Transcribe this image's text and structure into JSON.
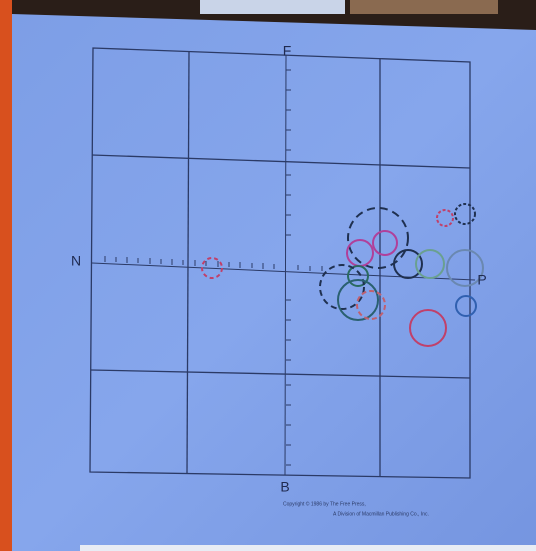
{
  "diagram": {
    "labels": {
      "top": "F",
      "bottom": "B",
      "left": "N",
      "right": "P"
    },
    "copyright": [
      "Copyright © 1986 by The Free Press,",
      "A Division of Macmillan Publishing Co., Inc."
    ]
  }
}
